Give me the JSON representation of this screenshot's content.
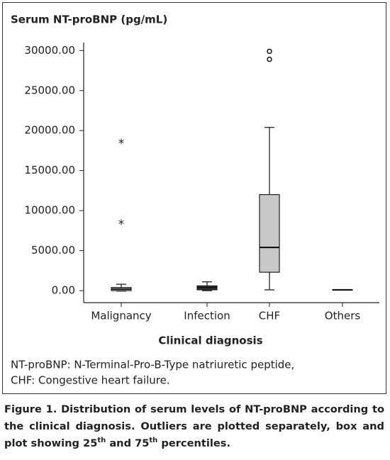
{
  "chart_data": {
    "type": "boxplot",
    "y_label": "Serum NT-proBNP (pg/mL)",
    "x_label": "Clinical diagnosis",
    "categories": [
      "Malignancy",
      "Infection",
      "CHF",
      "Others"
    ],
    "boxes": [
      {
        "min": -50,
        "q1": 0,
        "median": 200,
        "q3": 400,
        "max": 800,
        "color": "#e3e3e3",
        "outliers": [
          18700,
          8600
        ],
        "outlier_marker": "*"
      },
      {
        "min": 0,
        "q1": 100,
        "median": 400,
        "q3": 600,
        "max": 1100,
        "color": "#333333",
        "outliers": [],
        "outlier_marker": "*"
      },
      {
        "min": 100,
        "q1": 2300,
        "median": 5400,
        "q3": 12000,
        "max": 20400,
        "color": "#c8c8c8",
        "outliers": [
          29900,
          28900
        ],
        "outlier_marker": "o"
      },
      {
        "min": 100,
        "q1": 100,
        "median": 100,
        "q3": 100,
        "max": 100,
        "color": "#cccccc",
        "outliers": [],
        "outlier_marker": "o"
      }
    ],
    "ylim": [
      -1500,
      31000
    ],
    "yticks": [
      {
        "value": 0,
        "label": "0.00"
      },
      {
        "value": 5000,
        "label": "5000.00"
      },
      {
        "value": 10000,
        "label": "10000.00"
      },
      {
        "value": 15000,
        "label": "15000.00"
      },
      {
        "value": 20000,
        "label": "20000.00"
      },
      {
        "value": 25000,
        "label": "25000.00"
      },
      {
        "value": 30000,
        "label": "30000.00"
      }
    ],
    "footnote": [
      "NT-proBNP: N-Terminal-Pro-B-Type natriuretic peptide,",
      "CHF: Congestive heart failure."
    ]
  },
  "caption": {
    "text": "Figure 1. Distribution of serum levels of NT-proBNP according to the clinical diagnosis. Outliers are plotted separately, box and plot showing 25",
    "sup1": "th",
    "middle": " and 75",
    "sup2": "th",
    "end": " percentiles."
  }
}
